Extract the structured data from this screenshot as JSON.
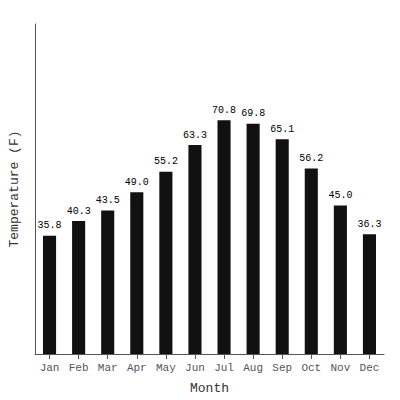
{
  "chart_data": {
    "type": "bar",
    "categories": [
      "Jan",
      "Feb",
      "Mar",
      "Apr",
      "May",
      "Jun",
      "Jul",
      "Aug",
      "Sep",
      "Oct",
      "Nov",
      "Dec"
    ],
    "values": [
      35.8,
      40.3,
      43.5,
      49.0,
      55.2,
      63.3,
      70.8,
      69.8,
      65.1,
      56.2,
      45.0,
      36.3
    ],
    "value_labels": [
      "35.8",
      "40.3",
      "43.5",
      "49.0",
      "55.2",
      "63.3",
      "70.8",
      "69.8",
      "65.1",
      "56.2",
      "45.0",
      "36.3"
    ],
    "color": "#111111",
    "xlabel": "Month",
    "ylabel": "Temperature (F)",
    "ylim": [
      0,
      100
    ],
    "data_labels": true,
    "tick_labels": "x",
    "grid": false
  }
}
